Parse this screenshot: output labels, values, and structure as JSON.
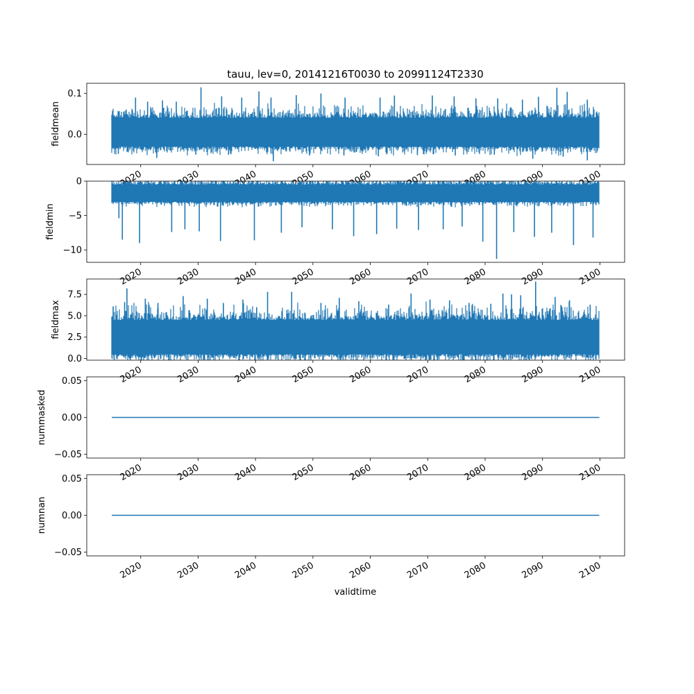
{
  "figure": {
    "title": "tauu, lev=0, 20141216T0030 to 20991124T2330",
    "xlabel": "validtime",
    "line_color": "#1f77b4"
  },
  "chart_data": [
    {
      "type": "line",
      "ylabel": "fieldmean",
      "xlim": [
        2010.6,
        2104.3
      ],
      "ylim": [
        -0.074,
        0.125
      ],
      "yticks": [
        0.0,
        0.1
      ],
      "ytick_labels": [
        "0.0",
        "0.1"
      ],
      "xtick_years": [
        2020,
        2030,
        2040,
        2050,
        2060,
        2070,
        2080,
        2090,
        2100
      ],
      "xtick_labels": [
        "2020",
        "2030",
        "2040",
        "2050",
        "2060",
        "2070",
        "2080",
        "2090",
        "2100"
      ],
      "series": [
        {
          "x_start": "2014-12-16",
          "x_end": "2099-11-24",
          "typical_range": [
            -0.03,
            0.04
          ],
          "peaks": [
            {
              "x": 2019.1,
              "y": 0.09
            },
            {
              "x": 2021.2,
              "y": 0.08
            },
            {
              "x": 2023.8,
              "y": 0.083
            },
            {
              "x": 2026.2,
              "y": 0.08
            },
            {
              "x": 2030.5,
              "y": 0.115
            },
            {
              "x": 2034.1,
              "y": 0.093
            },
            {
              "x": 2037.6,
              "y": 0.09
            },
            {
              "x": 2040.6,
              "y": 0.105
            },
            {
              "x": 2042.7,
              "y": 0.09
            },
            {
              "x": 2047.1,
              "y": 0.096
            },
            {
              "x": 2051.4,
              "y": 0.1
            },
            {
              "x": 2055.6,
              "y": 0.09
            },
            {
              "x": 2061.7,
              "y": 0.09
            },
            {
              "x": 2064.2,
              "y": 0.095
            },
            {
              "x": 2070.8,
              "y": 0.095
            },
            {
              "x": 2074.6,
              "y": 0.093
            },
            {
              "x": 2078.4,
              "y": 0.088
            },
            {
              "x": 2082.2,
              "y": 0.088
            },
            {
              "x": 2086.5,
              "y": 0.085
            },
            {
              "x": 2089.3,
              "y": 0.092
            },
            {
              "x": 2092.5,
              "y": 0.114
            },
            {
              "x": 2094.3,
              "y": 0.104
            },
            {
              "x": 2097.8,
              "y": 0.085
            }
          ],
          "troughs": [
            {
              "x": 2016.1,
              "y": -0.048
            },
            {
              "x": 2022.8,
              "y": -0.058
            },
            {
              "x": 2029.6,
              "y": -0.05
            },
            {
              "x": 2035.3,
              "y": -0.05
            },
            {
              "x": 2043.1,
              "y": -0.066
            },
            {
              "x": 2049.4,
              "y": -0.052
            },
            {
              "x": 2055.4,
              "y": -0.052
            },
            {
              "x": 2061.4,
              "y": -0.054
            },
            {
              "x": 2068.2,
              "y": -0.051
            },
            {
              "x": 2074.8,
              "y": -0.052
            },
            {
              "x": 2081.6,
              "y": -0.05
            },
            {
              "x": 2088.3,
              "y": -0.06
            },
            {
              "x": 2093.6,
              "y": -0.055
            },
            {
              "x": 2097.8,
              "y": -0.064
            }
          ]
        }
      ]
    },
    {
      "type": "line",
      "ylabel": "fieldmin",
      "xlim": [
        2010.6,
        2104.3
      ],
      "ylim": [
        -11.8,
        0.0
      ],
      "yticks": [
        0,
        -5,
        -10
      ],
      "ytick_labels": [
        "0",
        "−5",
        "−10"
      ],
      "xtick_years": [
        2020,
        2030,
        2040,
        2050,
        2060,
        2070,
        2080,
        2090,
        2100
      ],
      "xtick_labels": [
        "2020",
        "2030",
        "2040",
        "2050",
        "2060",
        "2070",
        "2080",
        "2090",
        "2100"
      ],
      "series": [
        {
          "x_start": "2014-12-16",
          "x_end": "2099-11-24",
          "typical_range": [
            -3.0,
            -0.5
          ],
          "peaks": [],
          "troughs": [
            {
              "x": 2016.2,
              "y": -5.4
            },
            {
              "x": 2016.8,
              "y": -8.5
            },
            {
              "x": 2019.8,
              "y": -9.0
            },
            {
              "x": 2025.4,
              "y": -7.4
            },
            {
              "x": 2027.7,
              "y": -7.0
            },
            {
              "x": 2030.2,
              "y": -7.3
            },
            {
              "x": 2033.9,
              "y": -8.7
            },
            {
              "x": 2039.8,
              "y": -8.6
            },
            {
              "x": 2044.5,
              "y": -7.5
            },
            {
              "x": 2048.1,
              "y": -6.7
            },
            {
              "x": 2053.4,
              "y": -7.0
            },
            {
              "x": 2057.1,
              "y": -8.0
            },
            {
              "x": 2061.1,
              "y": -7.7
            },
            {
              "x": 2064.6,
              "y": -6.9
            },
            {
              "x": 2068.4,
              "y": -7.1
            },
            {
              "x": 2072.7,
              "y": -7.0
            },
            {
              "x": 2076.0,
              "y": -6.6
            },
            {
              "x": 2079.6,
              "y": -8.8
            },
            {
              "x": 2082.0,
              "y": -11.3
            },
            {
              "x": 2085.0,
              "y": -7.4
            },
            {
              "x": 2088.6,
              "y": -8.1
            },
            {
              "x": 2091.6,
              "y": -7.5
            },
            {
              "x": 2095.4,
              "y": -9.3
            },
            {
              "x": 2098.8,
              "y": -8.2
            }
          ]
        }
      ]
    },
    {
      "type": "line",
      "ylabel": "fieldmax",
      "xlim": [
        2010.6,
        2104.3
      ],
      "ylim": [
        -0.2,
        9.3
      ],
      "yticks": [
        0.0,
        2.5,
        5.0,
        7.5
      ],
      "ytick_labels": [
        "0.0",
        "2.5",
        "5.0",
        "7.5"
      ],
      "xtick_years": [
        2020,
        2030,
        2040,
        2050,
        2060,
        2070,
        2080,
        2090,
        2100
      ],
      "xtick_labels": [
        "2020",
        "2030",
        "2040",
        "2050",
        "2060",
        "2070",
        "2080",
        "2090",
        "2100"
      ],
      "series": [
        {
          "x_start": "2014-12-16",
          "x_end": "2099-11-24",
          "typical_range": [
            0.5,
            4.5
          ],
          "peaks": [
            {
              "x": 2015.2,
              "y": 6.1
            },
            {
              "x": 2017.2,
              "y": 6.6
            },
            {
              "x": 2017.6,
              "y": 8.2
            },
            {
              "x": 2020.8,
              "y": 7.0
            },
            {
              "x": 2023.0,
              "y": 6.5
            },
            {
              "x": 2027.4,
              "y": 7.3
            },
            {
              "x": 2031.6,
              "y": 7.0
            },
            {
              "x": 2034.4,
              "y": 6.5
            },
            {
              "x": 2037.8,
              "y": 6.9
            },
            {
              "x": 2040.2,
              "y": 6.0
            },
            {
              "x": 2042.1,
              "y": 7.8
            },
            {
              "x": 2046.3,
              "y": 7.8
            },
            {
              "x": 2051.4,
              "y": 6.5
            },
            {
              "x": 2054.6,
              "y": 7.1
            },
            {
              "x": 2058.0,
              "y": 6.7
            },
            {
              "x": 2063.2,
              "y": 6.3
            },
            {
              "x": 2067.1,
              "y": 7.6
            },
            {
              "x": 2070.4,
              "y": 6.9
            },
            {
              "x": 2073.8,
              "y": 6.8
            },
            {
              "x": 2077.2,
              "y": 6.5
            },
            {
              "x": 2081.0,
              "y": 6.4
            },
            {
              "x": 2083.1,
              "y": 7.6
            },
            {
              "x": 2084.6,
              "y": 7.5
            },
            {
              "x": 2086.2,
              "y": 7.4
            },
            {
              "x": 2088.8,
              "y": 9.0
            },
            {
              "x": 2092.2,
              "y": 7.2
            },
            {
              "x": 2094.7,
              "y": 6.8
            },
            {
              "x": 2098.3,
              "y": 6.3
            }
          ],
          "troughs": []
        }
      ]
    },
    {
      "type": "line",
      "ylabel": "nummasked",
      "xlim": [
        2010.6,
        2104.3
      ],
      "ylim": [
        -0.055,
        0.055
      ],
      "yticks": [
        0.05,
        0.0,
        -0.05
      ],
      "ytick_labels": [
        "0.05",
        "0.00",
        "−0.05"
      ],
      "xtick_years": [
        2020,
        2030,
        2040,
        2050,
        2060,
        2070,
        2080,
        2090,
        2100
      ],
      "xtick_labels": [
        "2020",
        "2030",
        "2040",
        "2050",
        "2060",
        "2070",
        "2080",
        "2090",
        "2100"
      ],
      "series": [
        {
          "x_start": "2014-12-16",
          "x_end": "2099-11-24",
          "constant": 0.0
        }
      ]
    },
    {
      "type": "line",
      "ylabel": "numnan",
      "xlim": [
        2010.6,
        2104.3
      ],
      "ylim": [
        -0.055,
        0.055
      ],
      "yticks": [
        0.05,
        0.0,
        -0.05
      ],
      "ytick_labels": [
        "0.05",
        "0.00",
        "−0.05"
      ],
      "xtick_years": [
        2020,
        2030,
        2040,
        2050,
        2060,
        2070,
        2080,
        2090,
        2100
      ],
      "xtick_labels": [
        "2020",
        "2030",
        "2040",
        "2050",
        "2060",
        "2070",
        "2080",
        "2090",
        "2100"
      ],
      "series": [
        {
          "x_start": "2014-12-16",
          "x_end": "2099-11-24",
          "constant": 0.0
        }
      ]
    }
  ]
}
